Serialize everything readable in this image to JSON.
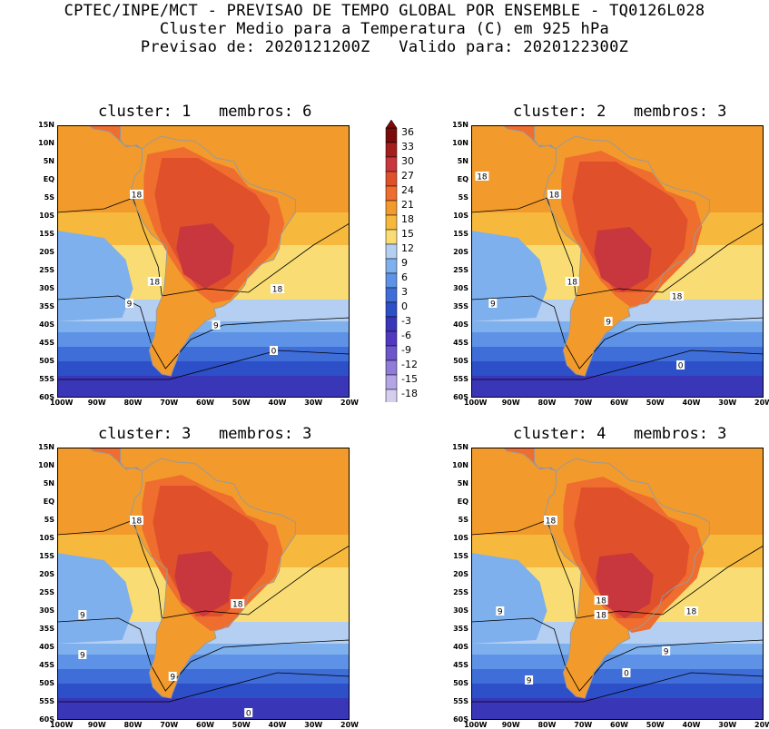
{
  "header": {
    "line1": "CPTEC/INPE/MCT - PREVISAO DE TEMPO GLOBAL POR ENSEMBLE - TQ0126L028",
    "line2": "Cluster Medio para a Temperatura (C) em 925 hPa",
    "line3": "Previsao de: 2020121200Z   Valido para: 2020122300Z"
  },
  "panels": [
    {
      "title": "cluster: 1   membros: 6",
      "contour_labels": [
        {
          "text": "18",
          "lon": -79,
          "lat": -4
        },
        {
          "text": "18",
          "lon": -74,
          "lat": -28
        },
        {
          "text": "18",
          "lon": -40,
          "lat": -30
        },
        {
          "text": "9",
          "lon": -81,
          "lat": -34
        },
        {
          "text": "9",
          "lon": -57,
          "lat": -40
        },
        {
          "text": "0",
          "lon": -41,
          "lat": -47
        }
      ]
    },
    {
      "title": "cluster: 2   membros: 3",
      "contour_labels": [
        {
          "text": "18",
          "lon": -98,
          "lat": 1
        },
        {
          "text": "18",
          "lon": -78,
          "lat": -4
        },
        {
          "text": "18",
          "lon": -73,
          "lat": -28
        },
        {
          "text": "18",
          "lon": -44,
          "lat": -32
        },
        {
          "text": "9",
          "lon": -95,
          "lat": -34
        },
        {
          "text": "9",
          "lon": -63,
          "lat": -39
        },
        {
          "text": "0",
          "lon": -43,
          "lat": -51
        }
      ]
    },
    {
      "title": "cluster: 3   membros: 3",
      "contour_labels": [
        {
          "text": "18",
          "lon": -79,
          "lat": -5
        },
        {
          "text": "18",
          "lon": -51,
          "lat": -28
        },
        {
          "text": "9",
          "lon": -94,
          "lat": -31
        },
        {
          "text": "9",
          "lon": -94,
          "lat": -42
        },
        {
          "text": "9",
          "lon": -69,
          "lat": -48
        },
        {
          "text": "0",
          "lon": -48,
          "lat": -58
        }
      ]
    },
    {
      "title": "cluster: 4   membros: 3",
      "contour_labels": [
        {
          "text": "18",
          "lon": -79,
          "lat": -5
        },
        {
          "text": "18",
          "lon": -65,
          "lat": -27
        },
        {
          "text": "18",
          "lon": -65,
          "lat": -31
        },
        {
          "text": "18",
          "lon": -40,
          "lat": -30
        },
        {
          "text": "9",
          "lon": -93,
          "lat": -30
        },
        {
          "text": "9",
          "lon": -47,
          "lat": -41
        },
        {
          "text": "9",
          "lon": -85,
          "lat": -49
        },
        {
          "text": "0",
          "lon": -58,
          "lat": -47
        }
      ]
    }
  ],
  "axes": {
    "lon_ticks": [
      "100W",
      "90W",
      "80W",
      "70W",
      "60W",
      "50W",
      "40W",
      "30W",
      "20W"
    ],
    "lon_values": [
      -100,
      -90,
      -80,
      -70,
      -60,
      -50,
      -40,
      -30,
      -20
    ],
    "lat_ticks": [
      "15N",
      "10N",
      "5N",
      "EQ",
      "5S",
      "10S",
      "15S",
      "20S",
      "25S",
      "30S",
      "35S",
      "40S",
      "45S",
      "50S",
      "55S",
      "60S"
    ],
    "lat_values": [
      15,
      10,
      5,
      0,
      -5,
      -10,
      -15,
      -20,
      -25,
      -30,
      -35,
      -40,
      -45,
      -50,
      -55,
      -60
    ],
    "lon_range": [
      -101,
      -20
    ],
    "lat_range": [
      -60,
      15
    ]
  },
  "colorbar": {
    "labels": [
      "36",
      "33",
      "30",
      "27",
      "24",
      "21",
      "18",
      "15",
      "12",
      "9",
      "6",
      "3",
      "0",
      "-3",
      "-6",
      "-9",
      "-12",
      "-15",
      "-18"
    ],
    "colors": [
      "#7a0b0b",
      "#a51e1e",
      "#c8373e",
      "#e0502a",
      "#ef6d2e",
      "#f29b2c",
      "#f6b93d",
      "#f9dd74",
      "#b5cff3",
      "#7fb0ee",
      "#5e92e6",
      "#3f6ed9",
      "#2d4fc8",
      "#3a36b8",
      "#5138c0",
      "#6d55cc",
      "#8f7bd8",
      "#b3a6e4",
      "#d6ceef"
    ]
  },
  "colors": {
    "coast": "#9a9a9a",
    "contour": "#000000"
  }
}
